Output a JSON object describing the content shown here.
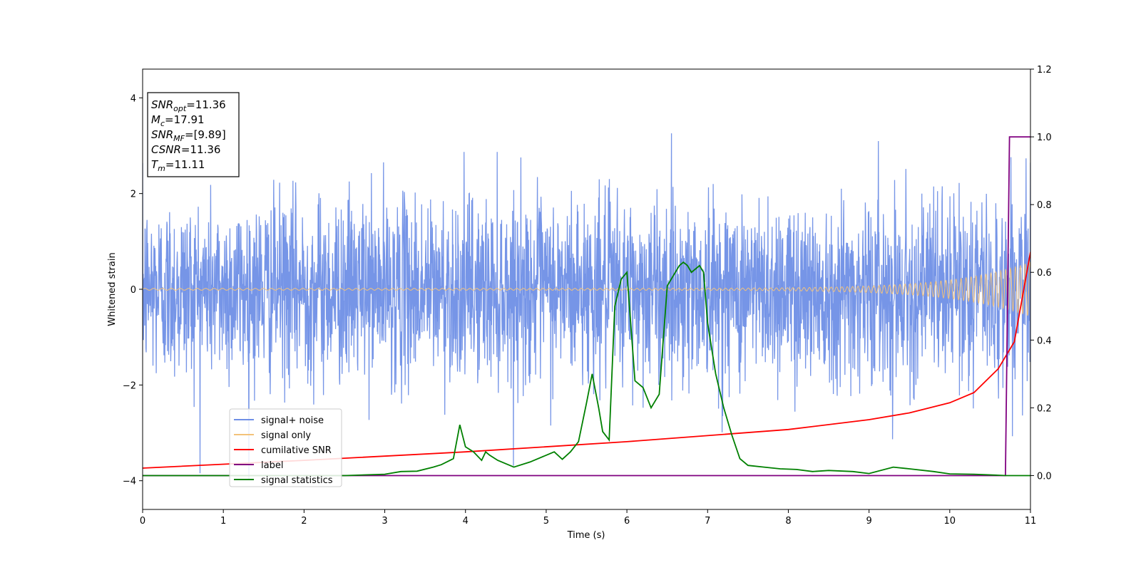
{
  "chart_data": {
    "type": "line",
    "xlabel": "Time (s)",
    "ylabel": "Whitened strain",
    "xlim": [
      0,
      11
    ],
    "ylim_left": [
      -4.6,
      4.6
    ],
    "ylim_right": [
      -0.1,
      1.2
    ],
    "x_ticks": [
      "0",
      "1",
      "2",
      "3",
      "4",
      "5",
      "6",
      "7",
      "8",
      "9",
      "10",
      "11"
    ],
    "y_ticks_left": [
      "4",
      "2",
      "0",
      "−2",
      "−4"
    ],
    "y_ticks_left_values": [
      4,
      2,
      0,
      -2,
      -4
    ],
    "y_ticks_right": [
      "1.2",
      "1.0",
      "0.8",
      "0.6",
      "0.4",
      "0.2",
      "0.0"
    ],
    "y_ticks_right_values": [
      1.2,
      1.0,
      0.8,
      0.6,
      0.4,
      0.2,
      0.0
    ],
    "grid": false,
    "legend_position": "lower-left",
    "info_box": {
      "lines": [
        {
          "main": "SNR",
          "sub": "opt",
          "value": "=11.36"
        },
        {
          "main": "M",
          "sub": "c",
          "value": "=17.91"
        },
        {
          "main": "SNR",
          "sub": "MF",
          "value": "=[9.89]"
        },
        {
          "main": "CSNR",
          "sub": "",
          "value": "=11.36"
        },
        {
          "main": "T",
          "sub": "m",
          "value": "=11.11"
        }
      ]
    },
    "series": [
      {
        "name": "signal+ noise",
        "axis": "left",
        "color": "#6f8fe6",
        "description_value": "noisy strain, std approx 1.0"
      },
      {
        "name": "signal only",
        "axis": "left",
        "color": "#f3c27a",
        "description_value": "chirp amplitude grows toward merger"
      },
      {
        "name": "cumilative SNR",
        "axis": "right",
        "color": "#ff0000",
        "x": [
          0,
          2,
          4,
          6,
          8,
          9,
          9.5,
          10,
          10.3,
          10.6,
          10.8,
          11
        ],
        "y": [
          0.022,
          0.045,
          0.07,
          0.1,
          0.136,
          0.165,
          0.185,
          0.215,
          0.245,
          0.315,
          0.395,
          0.66
        ]
      },
      {
        "name": "label",
        "axis": "right",
        "color": "#800080",
        "x": [
          0,
          10.69,
          10.74,
          11
        ],
        "y": [
          0.0,
          0.0,
          1.0,
          1.0
        ]
      },
      {
        "name": "signal statistics",
        "axis": "right",
        "color": "#008000",
        "x": [
          0,
          1,
          2,
          2.5,
          3.0,
          3.2,
          3.4,
          3.6,
          3.7,
          3.85,
          3.93,
          4.0,
          4.1,
          4.2,
          4.25,
          4.3,
          4.4,
          4.6,
          4.8,
          5.0,
          5.1,
          5.2,
          5.3,
          5.4,
          5.5,
          5.57,
          5.65,
          5.7,
          5.78,
          5.85,
          5.93,
          6.0,
          6.1,
          6.2,
          6.3,
          6.4,
          6.5,
          6.6,
          6.65,
          6.7,
          6.75,
          6.8,
          6.85,
          6.9,
          6.95,
          7.0,
          7.1,
          7.2,
          7.3,
          7.4,
          7.5,
          7.7,
          7.9,
          8.1,
          8.3,
          8.5,
          8.8,
          9.0,
          9.3,
          9.5,
          9.8,
          10.0,
          10.3,
          10.7,
          11.0
        ],
        "y": [
          0.0,
          0.0,
          0.0,
          0.0,
          0.004,
          0.012,
          0.013,
          0.025,
          0.032,
          0.05,
          0.15,
          0.085,
          0.07,
          0.045,
          0.07,
          0.06,
          0.045,
          0.025,
          0.04,
          0.06,
          0.07,
          0.048,
          0.07,
          0.1,
          0.215,
          0.3,
          0.2,
          0.13,
          0.105,
          0.5,
          0.58,
          0.6,
          0.28,
          0.26,
          0.2,
          0.24,
          0.56,
          0.6,
          0.62,
          0.63,
          0.62,
          0.6,
          0.61,
          0.62,
          0.6,
          0.45,
          0.3,
          0.2,
          0.12,
          0.05,
          0.03,
          0.025,
          0.02,
          0.018,
          0.012,
          0.015,
          0.012,
          0.006,
          0.025,
          0.02,
          0.012,
          0.005,
          0.004,
          0.0,
          0.0
        ]
      }
    ]
  }
}
